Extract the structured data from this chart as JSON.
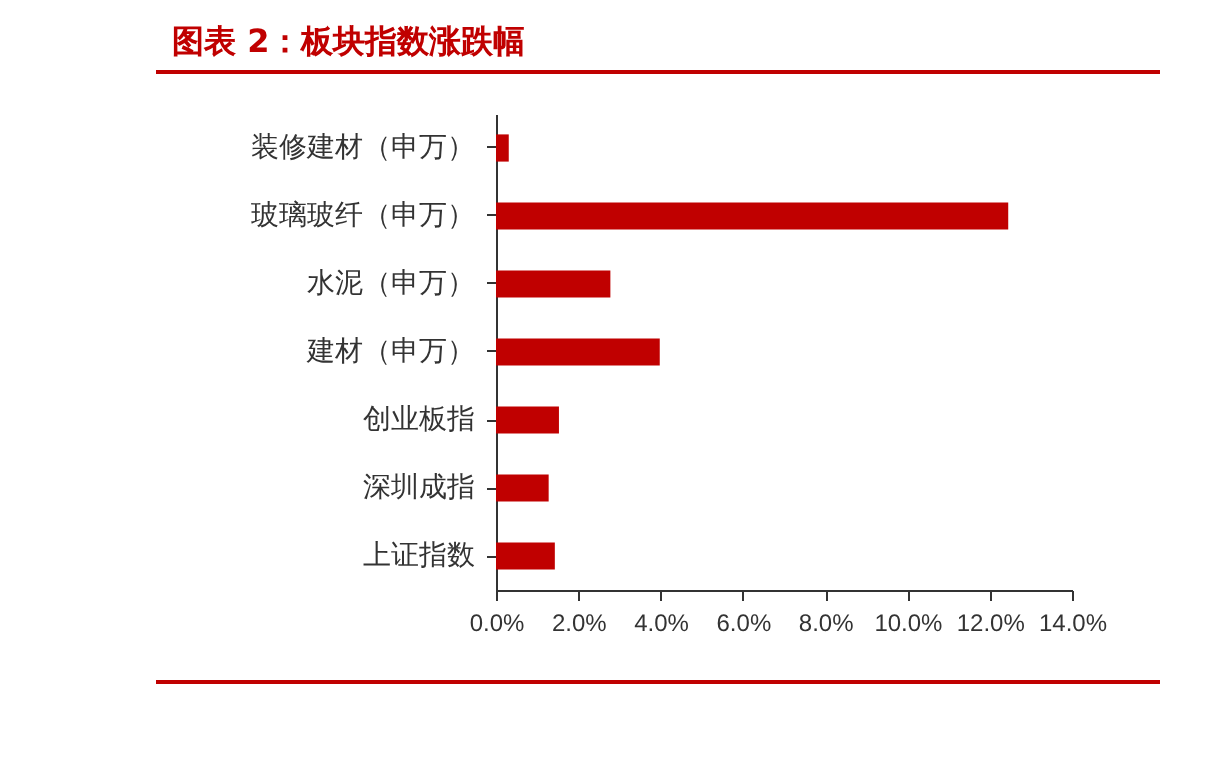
{
  "chart_data": {
    "type": "bar",
    "orientation": "horizontal",
    "title": "图表 2：板块指数涨跌幅",
    "categories": [
      "装修建材（申万）",
      "玻璃玻纤（申万）",
      "水泥（申万）",
      "建材（申万）",
      "创业板指",
      "深圳成指",
      "上证指数"
    ],
    "values": [
      0.31,
      12.45,
      2.78,
      3.98,
      1.53,
      1.28,
      1.43
    ],
    "color": "#c00000",
    "xlim": [
      0,
      14
    ],
    "xticks": [
      {
        "value": 0,
        "label": "0.0%"
      },
      {
        "value": 2,
        "label": "2.0%"
      },
      {
        "value": 4,
        "label": "4.0%"
      },
      {
        "value": 6,
        "label": "6.0%"
      },
      {
        "value": 8,
        "label": "8.0%"
      },
      {
        "value": 10,
        "label": "10.0%"
      },
      {
        "value": 12,
        "label": "12.0%"
      },
      {
        "value": 14,
        "label": "14.0%"
      }
    ],
    "grid": false
  }
}
